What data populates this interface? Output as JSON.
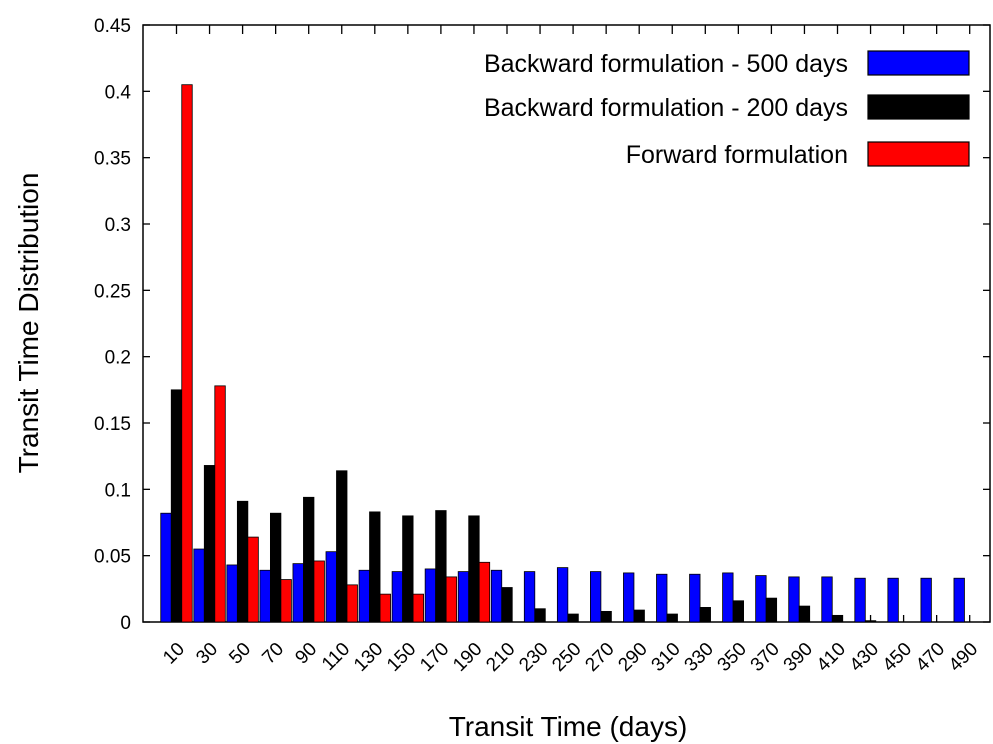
{
  "chart_data": {
    "type": "bar",
    "xlabel": "Transit Time (days)",
    "ylabel": "Transit Time Distribution",
    "ylim": [
      0,
      0.45
    ],
    "yticks": [
      "0",
      "0.05",
      "0.1",
      "0.15",
      "0.2",
      "0.25",
      "0.3",
      "0.35",
      "0.4",
      "0.45"
    ],
    "grid": false,
    "legend_position": "top-right",
    "categories": [
      "10",
      "30",
      "50",
      "70",
      "90",
      "110",
      "130",
      "150",
      "170",
      "190",
      "210",
      "230",
      "250",
      "270",
      "290",
      "310",
      "330",
      "350",
      "370",
      "390",
      "410",
      "430",
      "450",
      "470",
      "490"
    ],
    "series": [
      {
        "name": "Backward formulation - 500 days",
        "color": "#0000ff",
        "values": [
          0.082,
          0.055,
          0.043,
          0.039,
          0.044,
          0.053,
          0.039,
          0.038,
          0.04,
          0.038,
          0.039,
          0.038,
          0.041,
          0.038,
          0.037,
          0.036,
          0.036,
          0.037,
          0.035,
          0.034,
          0.034,
          0.033,
          0.033,
          0.033,
          0.033
        ]
      },
      {
        "name": "Backward formulation - 200 days",
        "color": "#000000",
        "values": [
          0.175,
          0.118,
          0.091,
          0.082,
          0.094,
          0.114,
          0.083,
          0.08,
          0.084,
          0.08,
          0.026,
          0.01,
          0.006,
          0.008,
          0.009,
          0.006,
          0.011,
          0.016,
          0.018,
          0.012,
          0.005,
          0.001,
          0.0,
          0.0,
          0.0
        ]
      },
      {
        "name": "Forward formulation",
        "color": "#ff0000",
        "values": [
          0.405,
          0.178,
          0.064,
          0.032,
          0.046,
          0.028,
          0.021,
          0.021,
          0.034,
          0.045,
          null,
          null,
          null,
          null,
          null,
          null,
          null,
          null,
          null,
          null,
          null,
          null,
          null,
          null,
          null
        ]
      }
    ]
  }
}
